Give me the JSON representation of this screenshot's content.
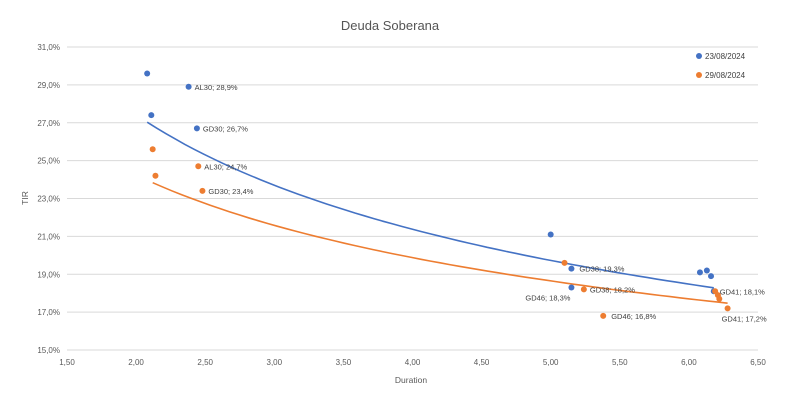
{
  "chart_data": {
    "type": "scatter",
    "title": "Deuda Soberana",
    "xlabel": "Duration",
    "ylabel": "TIR",
    "xlim": [
      1.5,
      6.5
    ],
    "ylim": [
      15.0,
      31.0
    ],
    "x_ticks": [
      "1,50",
      "2,00",
      "2,50",
      "3,00",
      "3,50",
      "4,00",
      "4,50",
      "5,00",
      "5,50",
      "6,00",
      "6,50"
    ],
    "y_ticks": [
      "15,0%",
      "17,0%",
      "19,0%",
      "21,0%",
      "23,0%",
      "25,0%",
      "27,0%",
      "29,0%",
      "31,0%"
    ],
    "grid": "horizontal",
    "legend_position": "top-right",
    "trendline": "power",
    "series": [
      {
        "name": "23/08/2024",
        "color": "#4472c4",
        "points": [
          {
            "x": 2.08,
            "y": 29.6,
            "label": ""
          },
          {
            "x": 2.38,
            "y": 28.9,
            "label": "AL30; 28,9%"
          },
          {
            "x": 2.11,
            "y": 27.4,
            "label": ""
          },
          {
            "x": 2.44,
            "y": 26.7,
            "label": "GD30; 26,7%"
          },
          {
            "x": 5.0,
            "y": 21.1,
            "label": ""
          },
          {
            "x": 5.15,
            "y": 19.3,
            "label": "GD38; 19,3%"
          },
          {
            "x": 5.15,
            "y": 18.3,
            "label": "GD46; 18,3%"
          },
          {
            "x": 6.08,
            "y": 19.1,
            "label": ""
          },
          {
            "x": 6.13,
            "y": 19.2,
            "label": ""
          },
          {
            "x": 6.16,
            "y": 18.9,
            "label": ""
          },
          {
            "x": 6.18,
            "y": 18.1,
            "label": "GD41; 18,1%"
          }
        ],
        "trend": {
          "a": 35.16,
          "b": -0.359
        }
      },
      {
        "name": "29/08/2024",
        "color": "#ed7d31",
        "points": [
          {
            "x": 2.12,
            "y": 25.6,
            "label": ""
          },
          {
            "x": 2.14,
            "y": 24.2,
            "label": ""
          },
          {
            "x": 2.45,
            "y": 24.7,
            "label": "AL30; 24,7%"
          },
          {
            "x": 2.48,
            "y": 23.4,
            "label": "GD30; 23,4%"
          },
          {
            "x": 5.1,
            "y": 19.6,
            "label": ""
          },
          {
            "x": 5.24,
            "y": 18.2,
            "label": "GD38; 18,2%"
          },
          {
            "x": 5.38,
            "y": 16.8,
            "label": "GD46; 16,8%"
          },
          {
            "x": 6.19,
            "y": 18.1,
            "label": ""
          },
          {
            "x": 6.21,
            "y": 17.9,
            "label": ""
          },
          {
            "x": 6.22,
            "y": 17.7,
            "label": ""
          },
          {
            "x": 6.28,
            "y": 17.2,
            "label": "GD41; 17,2%"
          }
        ],
        "trend": {
          "a": 29.55,
          "b": -0.286
        }
      }
    ]
  }
}
